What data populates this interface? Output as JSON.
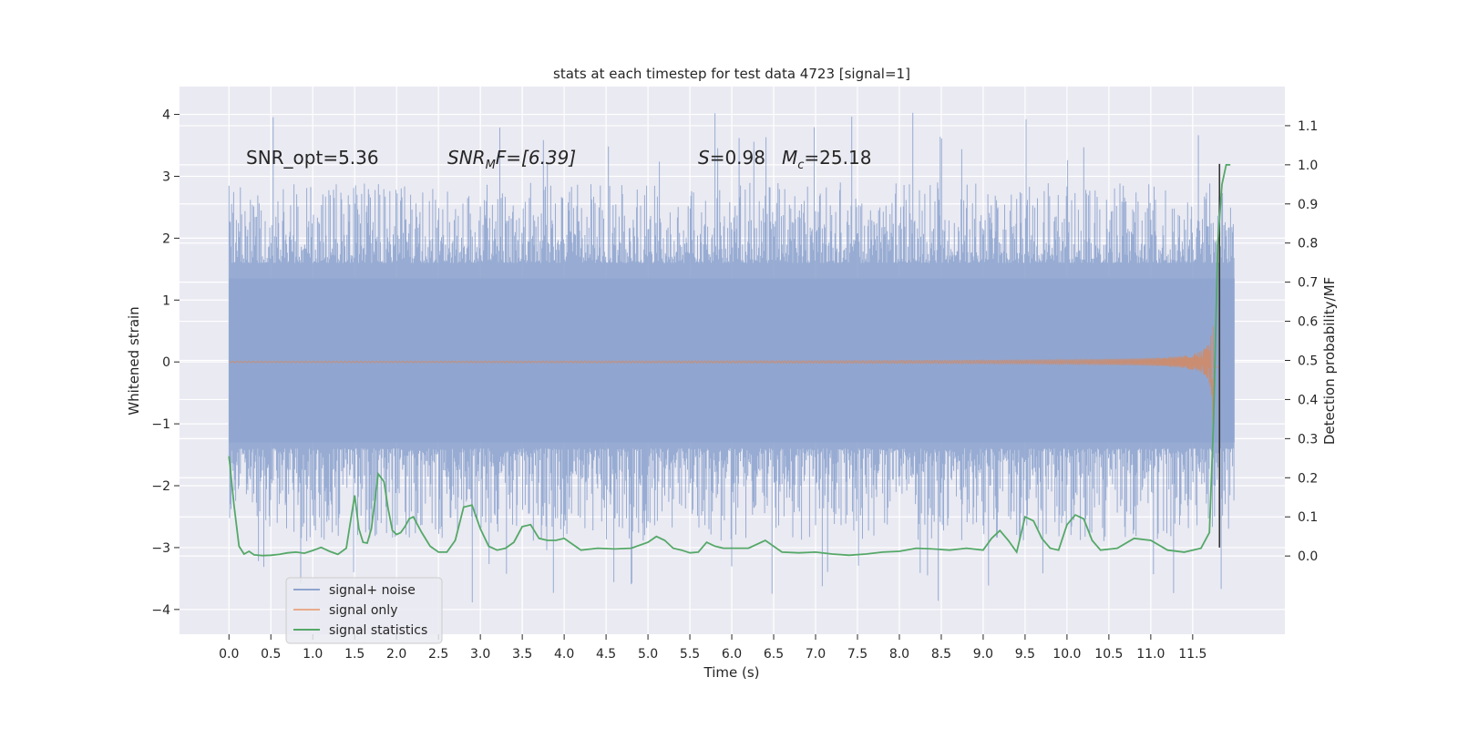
{
  "chart_data": {
    "type": "line",
    "title": "stats at each timestep for test data 4723 [signal=1]",
    "xlabel": "Time (s)",
    "ylabel": "Whitened strain",
    "y2label": "Detection probability/MF",
    "xlim": [
      -0.59,
      12.6
    ],
    "ylim": [
      -4.4,
      4.45
    ],
    "y2lim": [
      -0.2,
      1.2
    ],
    "x_ticks": [
      0.0,
      0.5,
      1.0,
      1.5,
      2.0,
      2.5,
      3.0,
      3.5,
      4.0,
      4.5,
      5.0,
      5.5,
      6.0,
      6.5,
      7.0,
      7.5,
      8.0,
      8.5,
      9.0,
      9.5,
      10.0,
      10.5,
      11.0,
      11.5
    ],
    "x_tick_labels": [
      "0.0",
      "0.5",
      "1.0",
      "1.5",
      "2.0",
      "2.5",
      "3.0",
      "3.5",
      "4.0",
      "4.5",
      "5.0",
      "5.5",
      "6.0",
      "6.5",
      "7.0",
      "7.5",
      "8.0",
      "8.5",
      "9.0",
      "9.5",
      "10.0",
      "10.5",
      "11.0",
      "11.5"
    ],
    "y_ticks": [
      4,
      3,
      2,
      1,
      0,
      -1,
      -2,
      -3,
      -4
    ],
    "y_tick_labels": [
      "4",
      "3",
      "2",
      "1",
      "0",
      "−1",
      "−2",
      "−3",
      "−4"
    ],
    "y2_ticks": [
      1.1,
      1.0,
      0.9,
      0.8,
      0.7,
      0.6,
      0.5,
      0.4,
      0.3,
      0.2,
      0.1,
      0.0
    ],
    "y2_tick_labels": [
      "1.1",
      "1.0",
      "0.9",
      "0.8",
      "0.7",
      "0.6",
      "0.5",
      "0.4",
      "0.3",
      "0.2",
      "0.1",
      "0.0"
    ],
    "grid": true,
    "legend_position": "lower-left",
    "annotations": {
      "snr_opt": "SNR_opt=5.36",
      "snr_mf_main": "SNR",
      "snr_mf_sub": "M",
      "snr_mf_rest": "F=[6.39]",
      "s_main": "S",
      "s_rest": "=0.98",
      "mc_main": "M",
      "mc_sub": "c",
      "mc_rest": "=25.18"
    },
    "marker_time": 11.82,
    "series": [
      {
        "name": "signal+ noise",
        "color": "#8fa5cf",
        "description_values": {
          "t_start": 0.0,
          "t_end": 12.0,
          "core_band": [
            -1.3,
            1.35
          ],
          "envelope_max": 4.1,
          "envelope_min": -3.9
        }
      },
      {
        "name": "signal only",
        "color": "#dd8452",
        "chirp": {
          "t_merger": 11.75,
          "peak_amplitude": 1.2,
          "t_end": 11.8
        }
      },
      {
        "name": "signal statistics",
        "color": "#55a868",
        "x": [
          0.0,
          0.06,
          0.12,
          0.18,
          0.24,
          0.3,
          0.4,
          0.5,
          0.6,
          0.7,
          0.8,
          0.9,
          1.0,
          1.1,
          1.2,
          1.3,
          1.4,
          1.5,
          1.55,
          1.6,
          1.65,
          1.7,
          1.78,
          1.85,
          1.9,
          1.95,
          2.0,
          2.05,
          2.1,
          2.15,
          2.2,
          2.3,
          2.4,
          2.5,
          2.6,
          2.7,
          2.8,
          2.9,
          3.0,
          3.1,
          3.2,
          3.3,
          3.4,
          3.5,
          3.6,
          3.7,
          3.8,
          3.9,
          4.0,
          4.2,
          4.4,
          4.6,
          4.8,
          5.0,
          5.1,
          5.2,
          5.3,
          5.4,
          5.5,
          5.6,
          5.7,
          5.8,
          5.9,
          6.0,
          6.2,
          6.4,
          6.6,
          6.8,
          7.0,
          7.2,
          7.4,
          7.6,
          7.8,
          8.0,
          8.2,
          8.4,
          8.6,
          8.8,
          9.0,
          9.1,
          9.2,
          9.3,
          9.4,
          9.5,
          9.6,
          9.7,
          9.8,
          9.9,
          10.0,
          10.1,
          10.2,
          10.3,
          10.4,
          10.6,
          10.8,
          11.0,
          11.2,
          11.4,
          11.6,
          11.7,
          11.75,
          11.8,
          11.85,
          11.9,
          11.95
        ],
        "values": [
          0.255,
          0.13,
          0.025,
          0.005,
          0.012,
          0.003,
          0.001,
          0.002,
          0.004,
          0.008,
          0.01,
          0.007,
          0.014,
          0.022,
          0.012,
          0.004,
          0.02,
          0.155,
          0.07,
          0.035,
          0.033,
          0.07,
          0.21,
          0.19,
          0.12,
          0.065,
          0.055,
          0.06,
          0.075,
          0.095,
          0.1,
          0.06,
          0.025,
          0.01,
          0.01,
          0.04,
          0.125,
          0.13,
          0.07,
          0.025,
          0.015,
          0.02,
          0.035,
          0.075,
          0.08,
          0.045,
          0.04,
          0.04,
          0.045,
          0.015,
          0.02,
          0.018,
          0.02,
          0.035,
          0.05,
          0.04,
          0.02,
          0.015,
          0.008,
          0.01,
          0.035,
          0.025,
          0.02,
          0.02,
          0.02,
          0.04,
          0.01,
          0.008,
          0.01,
          0.005,
          0.002,
          0.005,
          0.01,
          0.012,
          0.02,
          0.018,
          0.015,
          0.02,
          0.015,
          0.045,
          0.065,
          0.04,
          0.01,
          0.1,
          0.09,
          0.045,
          0.02,
          0.015,
          0.08,
          0.105,
          0.095,
          0.04,
          0.015,
          0.02,
          0.045,
          0.04,
          0.015,
          0.01,
          0.02,
          0.06,
          0.35,
          0.8,
          0.95,
          1.0,
          1.0
        ]
      }
    ]
  }
}
